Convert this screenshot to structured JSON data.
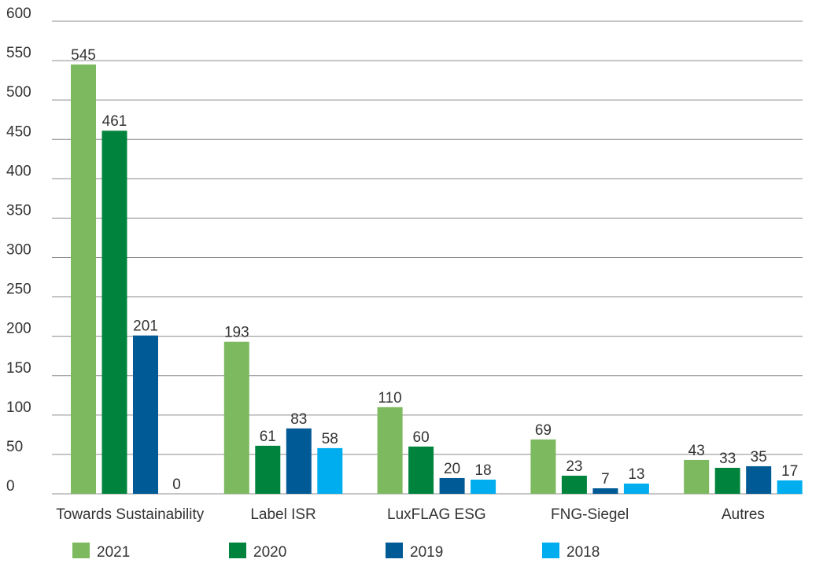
{
  "chart_data": {
    "type": "bar",
    "categories": [
      "Towards Sustainability",
      "Label ISR",
      "LuxFLAG ESG",
      "FNG-Siegel",
      "Autres"
    ],
    "series": [
      {
        "name": "2021",
        "color": "#7cb95f",
        "values": [
          545,
          193,
          110,
          69,
          43
        ]
      },
      {
        "name": "2020",
        "color": "#00843d",
        "values": [
          461,
          61,
          60,
          23,
          33
        ]
      },
      {
        "name": "2019",
        "color": "#005a96",
        "values": [
          201,
          83,
          20,
          7,
          35
        ]
      },
      {
        "name": "2018",
        "color": "#00aeef",
        "values": [
          0,
          58,
          18,
          13,
          17
        ]
      }
    ],
    "title": "",
    "xlabel": "",
    "ylabel": "",
    "ylim": [
      0,
      600
    ],
    "yticks": [
      0,
      50,
      100,
      150,
      200,
      250,
      300,
      350,
      400,
      450,
      500,
      550,
      600
    ],
    "grid": true,
    "legend_position": "bottom"
  }
}
